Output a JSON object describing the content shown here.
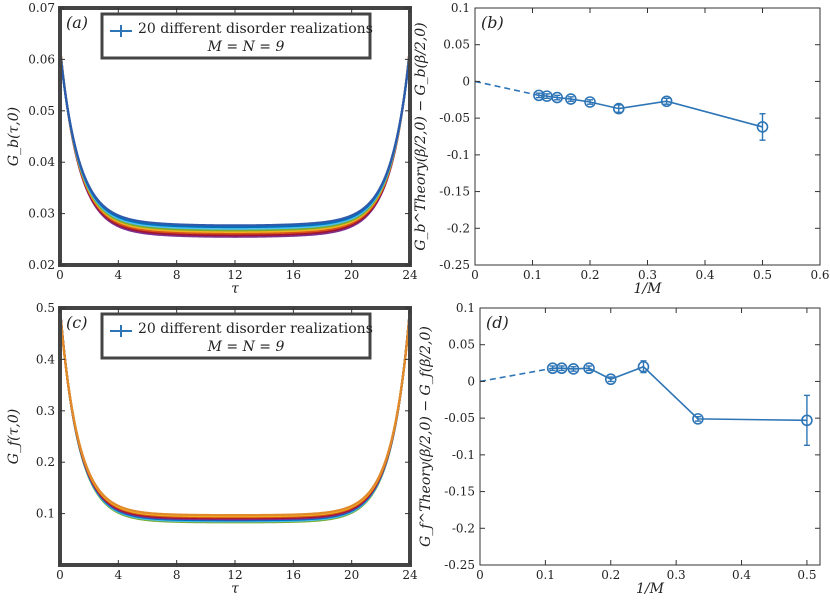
{
  "chart_data": [
    {
      "type": "line",
      "panel": "(a)",
      "xlabel": "τ",
      "ylabel": "G_b(τ,0)",
      "xlim": [
        0,
        24
      ],
      "ylim": [
        0.02,
        0.07
      ],
      "xticks": [
        0,
        4,
        8,
        12,
        16,
        20,
        24
      ],
      "yticks": [
        0.02,
        0.03,
        0.04,
        0.05,
        0.06,
        0.07
      ],
      "legend": {
        "entries": [
          "20 different disorder realizations",
          "M = N = 9"
        ],
        "placement": "top-center"
      },
      "curve": {
        "endpoint": 0.0625,
        "mid_min": 0.0255,
        "mid_max": 0.0277
      },
      "series_colors": [
        "#7E2F8E",
        "#A2142F",
        "#D95319",
        "#EDB120",
        "#77AC30",
        "#4DBEEE",
        "#0072BD",
        "#2E5AAC"
      ]
    },
    {
      "type": "scatter",
      "panel": "(b)",
      "xlabel": "1/M",
      "ylabel": "G_b^Theory(β/2,0) − G_b(β/2,0)",
      "xlim": [
        0,
        0.6
      ],
      "ylim": [
        -0.25,
        0.1
      ],
      "xticks": [
        0,
        0.1,
        0.2,
        0.3,
        0.4,
        0.5,
        0.6
      ],
      "yticks": [
        0.1,
        0.05,
        0,
        -0.05,
        -0.1,
        -0.15,
        -0.2,
        -0.25
      ],
      "points": [
        {
          "x": 0.1111,
          "y": -0.019,
          "err": 0.003
        },
        {
          "x": 0.125,
          "y": -0.02,
          "err": 0.003
        },
        {
          "x": 0.1429,
          "y": -0.022,
          "err": 0.003
        },
        {
          "x": 0.1667,
          "y": -0.024,
          "err": 0.003
        },
        {
          "x": 0.2,
          "y": -0.028,
          "err": 0.003
        },
        {
          "x": 0.25,
          "y": -0.037,
          "err": 0.005
        },
        {
          "x": 0.3333,
          "y": -0.027,
          "err": 0.004
        },
        {
          "x": 0.5,
          "y": -0.062,
          "err": 0.018
        }
      ],
      "extrapolation": {
        "from": [
          0,
          0
        ],
        "to": [
          0.1111,
          -0.019
        ],
        "style": "dashed"
      },
      "color": "#2E75B6"
    },
    {
      "type": "line",
      "panel": "(c)",
      "xlabel": "τ",
      "ylabel": "G_f(τ,0)",
      "xlim": [
        0,
        24
      ],
      "ylim": [
        0,
        0.5
      ],
      "xticks": [
        0,
        4,
        8,
        12,
        16,
        20,
        24
      ],
      "yticks": [
        0.1,
        0.2,
        0.3,
        0.4,
        0.5
      ],
      "legend": {
        "entries": [
          "20 different disorder realizations",
          "M = N = 9"
        ],
        "placement": "top-center"
      },
      "curve": {
        "endpoint": 0.5,
        "mid_min": 0.083,
        "mid_max": 0.097
      },
      "series_colors": [
        "#77AC30",
        "#4DBEEE",
        "#0072BD",
        "#7E2F8E",
        "#A2142F",
        "#D95319",
        "#EDB120",
        "#E08A2C"
      ]
    },
    {
      "type": "scatter",
      "panel": "(d)",
      "xlabel": "1/M",
      "ylabel": "G_f^Theory(β/2,0) − G_f(β/2,0)",
      "xlim": [
        0,
        0.52
      ],
      "ylim": [
        -0.25,
        0.1
      ],
      "xticks": [
        0,
        0.1,
        0.2,
        0.3,
        0.4,
        0.5
      ],
      "yticks": [
        0.1,
        0.05,
        0,
        -0.05,
        -0.1,
        -0.15,
        -0.2,
        -0.25
      ],
      "points": [
        {
          "x": 0.1111,
          "y": 0.018,
          "err": 0.003
        },
        {
          "x": 0.125,
          "y": 0.018,
          "err": 0.003
        },
        {
          "x": 0.1429,
          "y": 0.017,
          "err": 0.003
        },
        {
          "x": 0.1667,
          "y": 0.018,
          "err": 0.003
        },
        {
          "x": 0.2,
          "y": 0.003,
          "err": 0.003
        },
        {
          "x": 0.25,
          "y": 0.02,
          "err": 0.008
        },
        {
          "x": 0.3333,
          "y": -0.051,
          "err": 0.003
        },
        {
          "x": 0.5,
          "y": -0.053,
          "err": 0.034
        }
      ],
      "extrapolation": {
        "from": [
          0,
          0
        ],
        "to": [
          0.1111,
          0.018
        ],
        "style": "dashed"
      },
      "color": "#2E75B6"
    }
  ]
}
